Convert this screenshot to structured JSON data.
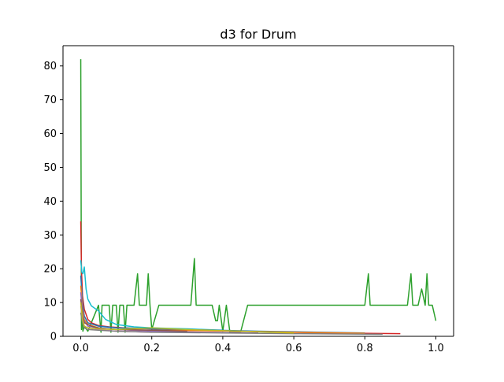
{
  "chart_data": {
    "type": "line",
    "title": "d3 for Drum",
    "xlabel": "",
    "ylabel": "",
    "xlim": [
      -0.05,
      1.05
    ],
    "ylim": [
      0,
      86
    ],
    "x_ticks": [
      0.0,
      0.2,
      0.4,
      0.6,
      0.8,
      1.0
    ],
    "x_tick_labels": [
      "0.0",
      "0.2",
      "0.4",
      "0.6",
      "0.8",
      "1.0"
    ],
    "y_ticks": [
      0,
      10,
      20,
      30,
      40,
      50,
      60,
      70,
      80
    ],
    "y_tick_labels": [
      "0",
      "10",
      "20",
      "30",
      "40",
      "50",
      "60",
      "70",
      "80"
    ],
    "grid": false,
    "legend": "none",
    "colors": [
      "#1f77b4",
      "#ff7f0e",
      "#2ca02c",
      "#d62728",
      "#9467bd",
      "#8c564b",
      "#e377c2",
      "#7f7f7f",
      "#bcbd22",
      "#17becf"
    ],
    "series": [
      {
        "color": "#2ca02c",
        "x": [
          0.0,
          0.002,
          0.004,
          0.006,
          0.01,
          0.02,
          0.05,
          0.057,
          0.06,
          0.08,
          0.085,
          0.09,
          0.1,
          0.105,
          0.11,
          0.12,
          0.125,
          0.13,
          0.15,
          0.16,
          0.165,
          0.17,
          0.18,
          0.185,
          0.19,
          0.195,
          0.2,
          0.22,
          0.23,
          0.25,
          0.265,
          0.28,
          0.3,
          0.31,
          0.32,
          0.325,
          0.33,
          0.34,
          0.35,
          0.36,
          0.37,
          0.38,
          0.385,
          0.39,
          0.4,
          0.41,
          0.42,
          0.45,
          0.47,
          0.475,
          0.48,
          0.49,
          0.5,
          0.52,
          0.54,
          0.55,
          0.56,
          0.58,
          0.6,
          0.605,
          0.62,
          0.64,
          0.66,
          0.68,
          0.7,
          0.71,
          0.72,
          0.725,
          0.73,
          0.74,
          0.76,
          0.77,
          0.78,
          0.8,
          0.81,
          0.815,
          0.82,
          0.825,
          0.83,
          0.84,
          0.86,
          0.87,
          0.88,
          0.89,
          0.9,
          0.905,
          0.91,
          0.915,
          0.92,
          0.93,
          0.935,
          0.94,
          0.95,
          0.96,
          0.97,
          0.975,
          0.98,
          0.99,
          1.0
        ],
        "y": [
          82.0,
          2.0,
          9.0,
          1.5,
          3.0,
          1.5,
          9.2,
          1.2,
          9.2,
          9.2,
          1.2,
          9.2,
          9.2,
          1.2,
          9.2,
          9.2,
          1.2,
          9.2,
          9.2,
          18.5,
          9.2,
          9.2,
          9.2,
          9.2,
          18.5,
          9.2,
          2.0,
          9.2,
          9.2,
          9.2,
          9.2,
          9.2,
          9.2,
          9.2,
          23.0,
          9.2,
          9.2,
          9.2,
          9.2,
          9.2,
          9.2,
          4.6,
          4.6,
          9.2,
          1.5,
          9.2,
          1.2,
          1.2,
          9.2,
          9.2,
          9.2,
          9.2,
          9.2,
          9.2,
          9.2,
          9.2,
          9.2,
          9.2,
          9.2,
          9.2,
          9.2,
          9.2,
          9.2,
          9.2,
          9.2,
          9.2,
          9.2,
          9.2,
          9.2,
          9.2,
          9.2,
          9.2,
          9.2,
          9.2,
          18.5,
          9.2,
          9.2,
          9.2,
          9.2,
          9.2,
          9.2,
          9.2,
          9.2,
          9.2,
          9.2,
          9.2,
          9.2,
          9.2,
          9.2,
          18.5,
          9.2,
          9.2,
          9.2,
          14.0,
          9.2,
          18.5,
          9.2,
          9.2,
          4.6
        ]
      },
      {
        "color": "#d62728",
        "x": [
          0.0,
          0.002,
          0.005,
          0.01,
          0.02,
          0.03,
          0.05,
          0.08,
          0.12,
          0.2,
          0.3,
          0.5,
          0.7,
          0.9
        ],
        "y": [
          34.0,
          20.0,
          12.0,
          8.0,
          5.0,
          4.0,
          3.2,
          2.8,
          2.5,
          2.2,
          1.8,
          1.4,
          1.0,
          0.8
        ]
      },
      {
        "color": "#17becf",
        "x": [
          0.0,
          0.003,
          0.006,
          0.01,
          0.015,
          0.02,
          0.03,
          0.05,
          0.07,
          0.1,
          0.15,
          0.2,
          0.3,
          0.4
        ],
        "y": [
          22.5,
          19.0,
          18.5,
          20.5,
          14.0,
          11.0,
          9.0,
          7.5,
          5.0,
          3.5,
          2.8,
          2.5,
          2.2,
          1.8
        ]
      },
      {
        "color": "#1f77b4",
        "x": [
          0.0,
          0.005,
          0.01,
          0.02,
          0.05,
          0.1,
          0.2,
          0.3,
          0.5,
          0.8
        ],
        "y": [
          18.0,
          10.0,
          6.0,
          4.0,
          3.0,
          2.5,
          2.2,
          2.0,
          1.5,
          1.0
        ]
      },
      {
        "color": "#ff7f0e",
        "x": [
          0.0,
          0.005,
          0.01,
          0.02,
          0.05,
          0.1,
          0.2,
          0.4,
          0.6,
          0.8
        ],
        "y": [
          15.0,
          8.0,
          5.0,
          3.5,
          2.5,
          2.0,
          1.8,
          1.6,
          1.2,
          0.9
        ]
      },
      {
        "color": "#9467bd",
        "x": [
          0.0,
          0.005,
          0.01,
          0.02,
          0.05,
          0.1,
          0.2,
          0.35,
          0.5
        ],
        "y": [
          13.0,
          7.0,
          4.5,
          3.0,
          2.5,
          2.0,
          1.5,
          1.2,
          1.0
        ]
      },
      {
        "color": "#8c564b",
        "x": [
          0.0,
          0.005,
          0.01,
          0.03,
          0.06,
          0.1,
          0.2,
          0.3
        ],
        "y": [
          11.0,
          6.0,
          4.0,
          3.0,
          2.2,
          2.0,
          1.8,
          1.5
        ]
      },
      {
        "color": "#e377c2",
        "x": [
          0.0,
          0.005,
          0.01,
          0.02,
          0.05,
          0.1,
          0.2
        ],
        "y": [
          9.0,
          5.0,
          3.0,
          2.5,
          2.0,
          1.5,
          1.2
        ]
      },
      {
        "color": "#7f7f7f",
        "x": [
          0.0,
          0.005,
          0.01,
          0.02,
          0.05,
          0.1,
          0.2,
          0.4,
          0.6,
          0.85
        ],
        "y": [
          7.0,
          4.0,
          2.5,
          2.0,
          1.8,
          1.5,
          1.2,
          1.0,
          0.8,
          0.6
        ]
      },
      {
        "color": "#bcbd22",
        "x": [
          0.0,
          0.005,
          0.01,
          0.02,
          0.05,
          0.1,
          0.2,
          0.3,
          0.45,
          0.6
        ],
        "y": [
          10.0,
          5.0,
          3.0,
          2.5,
          2.2,
          2.0,
          2.5,
          2.0,
          1.5,
          1.0
        ]
      }
    ]
  }
}
